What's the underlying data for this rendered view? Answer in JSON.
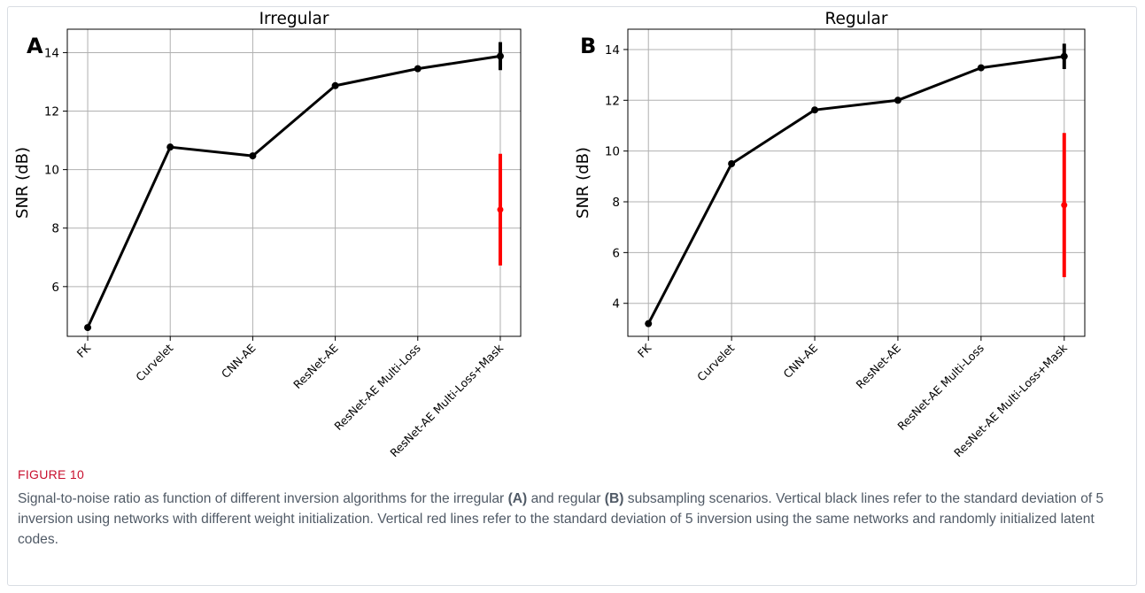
{
  "chart_data": [
    {
      "type": "line",
      "panel_label": "A",
      "title": "Irregular",
      "xlabel": "",
      "ylabel": "SNR (dB)",
      "categories": [
        "FK",
        "Curvelet",
        "CNN-AE",
        "ResNet-AE",
        "ResNet-AE Multi-Loss",
        "ResNet-AE Multi-Loss+Mask"
      ],
      "ylim": [
        4.3,
        14.8
      ],
      "yticks": [
        6,
        8,
        10,
        12,
        14
      ],
      "grid": true,
      "series": [
        {
          "values": [
            4.6,
            10.77,
            10.47,
            12.87,
            13.45,
            13.88
          ],
          "color": "#000000"
        }
      ],
      "error_bars": [
        {
          "category": "ResNet-AE Multi-Loss+Mask",
          "center": 13.88,
          "low": 13.4,
          "high": 14.36,
          "color": "#000000"
        },
        {
          "category": "ResNet-AE Multi-Loss+Mask",
          "center": 8.63,
          "low": 6.72,
          "high": 10.54,
          "color": "#ff0000"
        }
      ]
    },
    {
      "type": "line",
      "panel_label": "B",
      "title": "Regular",
      "xlabel": "",
      "ylabel": "SNR (dB)",
      "categories": [
        "FK",
        "Curvelet",
        "CNN-AE",
        "ResNet-AE",
        "ResNet-AE Multi-Loss",
        "ResNet-AE Multi-Loss+Mask"
      ],
      "ylim": [
        2.7,
        14.8
      ],
      "yticks": [
        4,
        6,
        8,
        10,
        12,
        14
      ],
      "grid": true,
      "series": [
        {
          "values": [
            3.2,
            9.5,
            11.62,
            12.0,
            13.28,
            13.73
          ],
          "color": "#000000"
        }
      ],
      "error_bars": [
        {
          "category": "ResNet-AE Multi-Loss+Mask",
          "center": 13.73,
          "low": 13.23,
          "high": 14.23,
          "color": "#000000"
        },
        {
          "category": "ResNet-AE Multi-Loss+Mask",
          "center": 7.87,
          "low": 5.03,
          "high": 10.71,
          "color": "#ff0000"
        }
      ]
    }
  ],
  "caption": {
    "label": "FIGURE 10",
    "text_1": "Signal-to-noise ratio as function of different inversion algorithms for the irregular ",
    "bold_a": "(A)",
    "text_2": " and regular ",
    "bold_b": "(B)",
    "text_3": " subsampling scenarios. Vertical black lines refer to the standard deviation of 5 inversion using networks with different weight initialization. Vertical red lines refer to the standard deviation of 5 inversion using the same networks and randomly initialized latent codes."
  }
}
